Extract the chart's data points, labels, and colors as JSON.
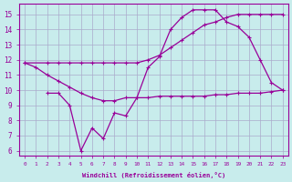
{
  "xlabel": "Windchill (Refroidissement éolien,°C)",
  "bg_color": "#c8ecec",
  "line_color": "#990099",
  "grid_color": "#aaaacc",
  "xlim": [
    -0.5,
    23.5
  ],
  "ylim": [
    5.7,
    15.7
  ],
  "yticks": [
    6,
    7,
    8,
    9,
    10,
    11,
    12,
    13,
    14,
    15
  ],
  "xticks": [
    0,
    1,
    2,
    3,
    4,
    5,
    6,
    7,
    8,
    9,
    10,
    11,
    12,
    13,
    14,
    15,
    16,
    17,
    18,
    19,
    20,
    21,
    22,
    23
  ],
  "line1_x": [
    0,
    1,
    2,
    3,
    4,
    5,
    6,
    7,
    8,
    9,
    10,
    11,
    12,
    13,
    14,
    15,
    16,
    17,
    18,
    19,
    20,
    21,
    22,
    23
  ],
  "line1_y": [
    11.8,
    11.5,
    11.0,
    10.6,
    10.2,
    9.8,
    9.5,
    9.3,
    9.3,
    9.5,
    9.5,
    9.5,
    9.6,
    9.6,
    9.6,
    9.6,
    9.6,
    9.7,
    9.7,
    9.8,
    9.8,
    9.8,
    9.9,
    10.0
  ],
  "line2_x": [
    0,
    2,
    3,
    4,
    5,
    6,
    7,
    8,
    9,
    10,
    11,
    12,
    13,
    14,
    15,
    16,
    17,
    18,
    19,
    20,
    21,
    22,
    23
  ],
  "line2_y": [
    11.8,
    11.8,
    11.8,
    11.8,
    11.8,
    11.8,
    11.8,
    11.8,
    11.8,
    11.8,
    12.0,
    12.3,
    12.8,
    13.3,
    13.8,
    14.3,
    14.5,
    14.8,
    15.0,
    15.0,
    15.0,
    15.0,
    15.0
  ],
  "line3_x": [
    2,
    3,
    4,
    5,
    6,
    7,
    8,
    9,
    10,
    11,
    12,
    13,
    14,
    15,
    16,
    17,
    18,
    19,
    20,
    21,
    22,
    23
  ],
  "line3_y": [
    9.8,
    9.8,
    9.0,
    6.0,
    7.5,
    6.8,
    8.5,
    8.3,
    9.5,
    11.5,
    12.2,
    14.0,
    14.8,
    15.3,
    15.3,
    15.3,
    14.5,
    14.2,
    13.5,
    12.0,
    10.5,
    10.0
  ]
}
